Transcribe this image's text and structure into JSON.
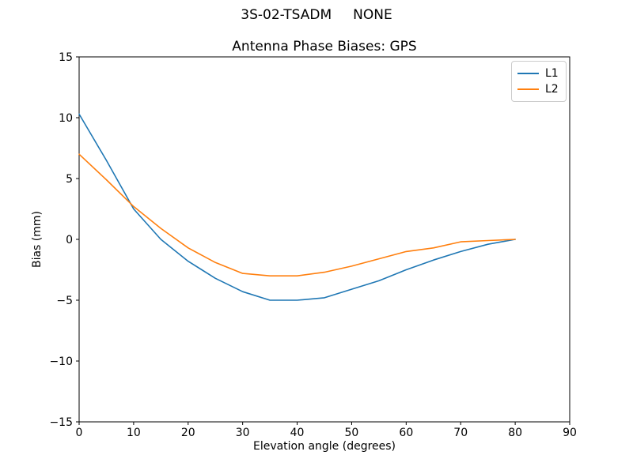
{
  "figure": {
    "suptitle": "3S-02-TSADM     NONE",
    "background_color": "#ffffff",
    "text_color": "#000000"
  },
  "chart_data": {
    "type": "line",
    "title": "Antenna Phase Biases: GPS",
    "xlabel": "Elevation angle (degrees)",
    "ylabel": "Bias (mm)",
    "xlim": [
      0,
      90
    ],
    "ylim": [
      -15,
      15
    ],
    "xticks": [
      0,
      10,
      20,
      30,
      40,
      50,
      60,
      70,
      80,
      90
    ],
    "yticks": [
      15,
      10,
      5,
      0,
      -5,
      -10,
      -15
    ],
    "grid": false,
    "legend_position": "upper right",
    "x": [
      0,
      5,
      10,
      15,
      20,
      25,
      30,
      35,
      40,
      45,
      50,
      55,
      60,
      65,
      70,
      75,
      80
    ],
    "series": [
      {
        "name": "L1",
        "color": "#1f77b4",
        "values": [
          10.3,
          6.5,
          2.5,
          0.0,
          -1.8,
          -3.2,
          -4.3,
          -5.0,
          -5.0,
          -4.8,
          -4.1,
          -3.4,
          -2.5,
          -1.7,
          -1.0,
          -0.4,
          0.0
        ]
      },
      {
        "name": "L2",
        "color": "#ff7f0e",
        "values": [
          7.0,
          4.9,
          2.7,
          0.9,
          -0.7,
          -1.9,
          -2.8,
          -3.0,
          -3.0,
          -2.7,
          -2.2,
          -1.6,
          -1.0,
          -0.7,
          -0.2,
          -0.1,
          0.0
        ]
      }
    ]
  }
}
